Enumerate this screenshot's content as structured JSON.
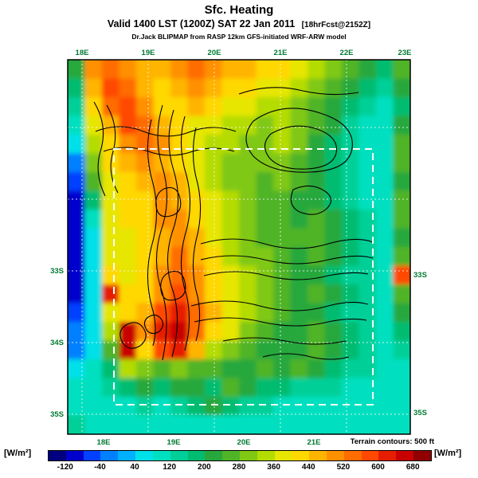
{
  "header": {
    "title": "Sfc. Heating",
    "valid_line": "Valid 1400 LST (1200Z) SAT 22 Jan 2011",
    "valid_suffix": "[18hrFcst@2152Z]",
    "model_line": "Dr.Jack BLIPMAP from RASP 12km GFS-initiated WRF-ARW model"
  },
  "chart_data": {
    "type": "heatmap",
    "title": "Sfc. Heating",
    "units": "W/m²",
    "axes": {
      "top_lon_labels": [
        "18E",
        "19E",
        "20E",
        "21E",
        "22E",
        "23E"
      ],
      "bottom_lon_labels": [
        "18E",
        "19E",
        "20E",
        "21E"
      ],
      "left_lat_labels": [
        "33S",
        "34S",
        "35S"
      ],
      "right_lat_labels": [
        "33S",
        "35S"
      ]
    },
    "annotations": {
      "terrain": "Terrain contours: 500 ft",
      "domain_box": "dashed white inner model domain rectangle"
    },
    "colorbar": {
      "label": "[W/m²]",
      "tick_values": [
        -120,
        -40,
        40,
        120,
        200,
        280,
        360,
        440,
        520,
        600,
        680
      ],
      "range": [
        -160,
        720
      ],
      "band_step": 40,
      "band_colors": [
        "#000080",
        "#0000CD",
        "#0040FF",
        "#0080FF",
        "#00B0FF",
        "#00E0E8",
        "#00E0C0",
        "#00D098",
        "#00BC70",
        "#28A83C",
        "#50B428",
        "#80C814",
        "#B4DC00",
        "#E6E600",
        "#FFD800",
        "#FFB400",
        "#FF9000",
        "#FF6C00",
        "#FF4800",
        "#E61E00",
        "#C80000",
        "#900000"
      ]
    },
    "grid": {
      "note": "approximate surface heating values in W/m², 20x20 cells, row 0 = north (~30S) to row 19 = south (~35.3S), col 0 = west (~17.8E) to col 19 = east (~23.1E)",
      "cols": 20,
      "rows": 20,
      "values": [
        [
          220,
          500,
          540,
          500,
          460,
          460,
          500,
          540,
          500,
          460,
          460,
          420,
          420,
          380,
          340,
          300,
          260,
          220,
          180,
          240
        ],
        [
          180,
          460,
          580,
          540,
          460,
          420,
          460,
          500,
          460,
          420,
          420,
          380,
          380,
          340,
          300,
          260,
          220,
          160,
          140,
          200
        ],
        [
          120,
          420,
          540,
          580,
          500,
          420,
          420,
          460,
          420,
          380,
          380,
          340,
          340,
          300,
          260,
          220,
          180,
          120,
          100,
          160
        ],
        [
          80,
          380,
          460,
          580,
          540,
          460,
          420,
          380,
          380,
          340,
          340,
          300,
          340,
          300,
          240,
          200,
          140,
          100,
          100,
          200
        ],
        [
          40,
          340,
          420,
          500,
          540,
          500,
          420,
          380,
          340,
          340,
          300,
          300,
          340,
          280,
          220,
          180,
          120,
          100,
          100,
          240
        ],
        [
          -20,
          300,
          420,
          460,
          500,
          460,
          420,
          380,
          340,
          300,
          300,
          280,
          300,
          260,
          220,
          160,
          120,
          100,
          100,
          240
        ],
        [
          -60,
          240,
          380,
          420,
          460,
          500,
          440,
          380,
          340,
          300,
          280,
          260,
          280,
          240,
          200,
          160,
          120,
          100,
          100,
          200
        ],
        [
          -100,
          160,
          380,
          400,
          420,
          500,
          460,
          400,
          360,
          320,
          280,
          240,
          260,
          220,
          200,
          160,
          140,
          100,
          100,
          240
        ],
        [
          -100,
          100,
          380,
          400,
          400,
          480,
          500,
          420,
          360,
          320,
          280,
          240,
          240,
          220,
          240,
          200,
          160,
          120,
          100,
          240
        ],
        [
          -100,
          60,
          360,
          380,
          400,
          460,
          500,
          440,
          380,
          340,
          300,
          260,
          240,
          240,
          260,
          220,
          180,
          120,
          100,
          200
        ],
        [
          -100,
          40,
          380,
          380,
          420,
          460,
          520,
          460,
          400,
          340,
          300,
          280,
          240,
          220,
          240,
          200,
          160,
          120,
          100,
          240
        ],
        [
          -100,
          40,
          420,
          380,
          400,
          480,
          540,
          480,
          400,
          360,
          320,
          280,
          240,
          200,
          220,
          180,
          140,
          120,
          100,
          580
        ],
        [
          -100,
          40,
          620,
          420,
          420,
          500,
          560,
          500,
          420,
          360,
          320,
          280,
          240,
          220,
          240,
          200,
          160,
          120,
          100,
          240
        ],
        [
          -60,
          60,
          380,
          420,
          440,
          560,
          600,
          520,
          440,
          380,
          320,
          280,
          240,
          200,
          220,
          180,
          140,
          120,
          100,
          200
        ],
        [
          -20,
          60,
          340,
          660,
          480,
          600,
          640,
          520,
          420,
          360,
          300,
          260,
          220,
          200,
          240,
          200,
          160,
          120,
          100,
          160
        ],
        [
          -20,
          40,
          240,
          660,
          420,
          560,
          600,
          460,
          320,
          280,
          240,
          220,
          200,
          220,
          260,
          220,
          160,
          120,
          100,
          120
        ],
        [
          40,
          80,
          160,
          320,
          280,
          240,
          280,
          240,
          240,
          220,
          200,
          240,
          220,
          240,
          220,
          180,
          140,
          120,
          100,
          100
        ],
        [
          80,
          100,
          120,
          160,
          200,
          160,
          200,
          220,
          180,
          240,
          220,
          180,
          160,
          140,
          120,
          120,
          100,
          100,
          100,
          100
        ],
        [
          100,
          100,
          100,
          100,
          120,
          100,
          140,
          180,
          220,
          180,
          140,
          120,
          100,
          100,
          100,
          100,
          100,
          100,
          100,
          100
        ],
        [
          120,
          100,
          100,
          100,
          100,
          100,
          100,
          100,
          100,
          100,
          100,
          100,
          100,
          100,
          100,
          100,
          100,
          100,
          100,
          100
        ]
      ]
    }
  }
}
